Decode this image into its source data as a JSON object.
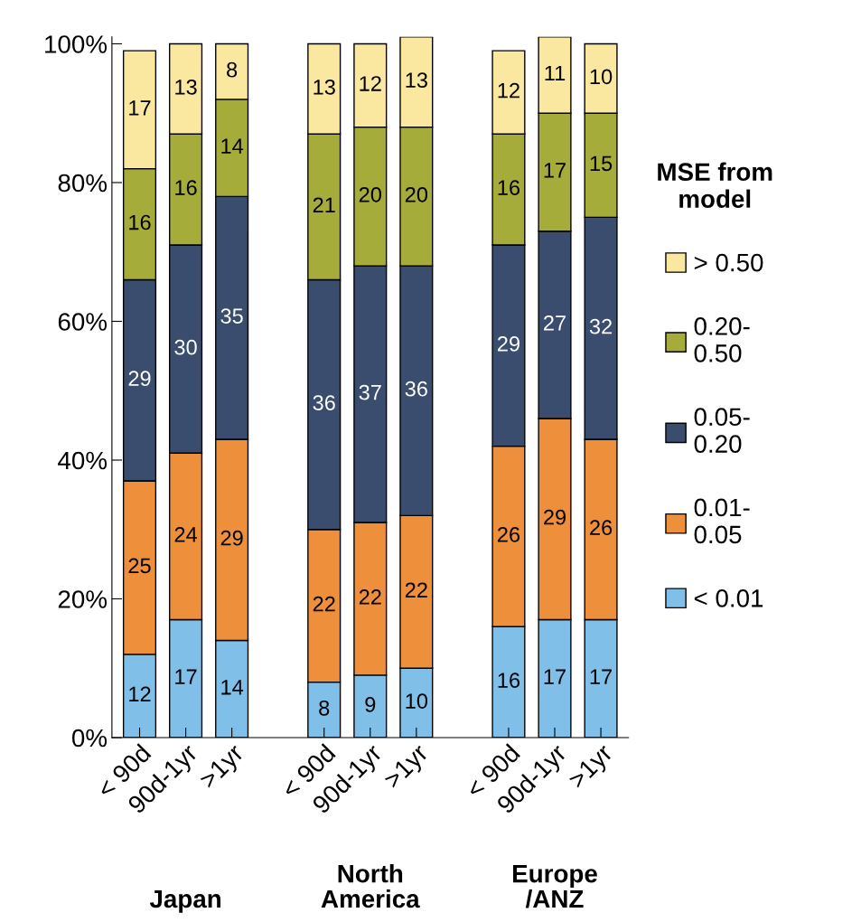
{
  "chart_data": {
    "type": "bar",
    "stacked": true,
    "data_labels": true,
    "legend": "right",
    "legend_title": "MSE from\nmodel",
    "categories": [
      "< 90d",
      "90d-1yr",
      ">1yr",
      null,
      "< 90d",
      "90d-1yr",
      ">1yr",
      null,
      "< 90d",
      "90d-1yr",
      ">1yr"
    ],
    "series": [
      {
        "name": "< 0.01",
        "color": "#7fbfe8",
        "values": [
          12,
          17,
          14,
          null,
          8,
          9,
          10,
          null,
          16,
          17,
          17
        ]
      },
      {
        "name": "0.01-\n0.05",
        "color": "#ee8f3b",
        "values": [
          25,
          24,
          29,
          null,
          22,
          22,
          22,
          null,
          26,
          29,
          26
        ]
      },
      {
        "name": "0.05-\n0.20",
        "color": "#3a4d6e",
        "values": [
          29,
          30,
          35,
          null,
          36,
          37,
          36,
          null,
          29,
          27,
          32
        ]
      },
      {
        "name": "0.20-\n0.50",
        "color": "#a5ac3a",
        "values": [
          16,
          16,
          14,
          null,
          21,
          20,
          20,
          null,
          16,
          17,
          15
        ]
      },
      {
        "name": "> 0.50",
        "color": "#fbe8a0",
        "values": [
          17,
          13,
          8,
          null,
          13,
          12,
          13,
          null,
          12,
          11,
          10
        ]
      }
    ],
    "ylim": [
      0,
      101
    ],
    "yticks": [
      {
        "value": 0,
        "label": "0%"
      },
      {
        "value": 20,
        "label": "20%"
      },
      {
        "value": 40,
        "label": "40%"
      },
      {
        "value": 60,
        "label": "60%"
      },
      {
        "value": 80,
        "label": "80%"
      },
      {
        "value": 100,
        "label": "100%"
      }
    ],
    "annotations": [
      "Japan",
      "North\nAmerica",
      "Europe\n/ANZ"
    ]
  }
}
